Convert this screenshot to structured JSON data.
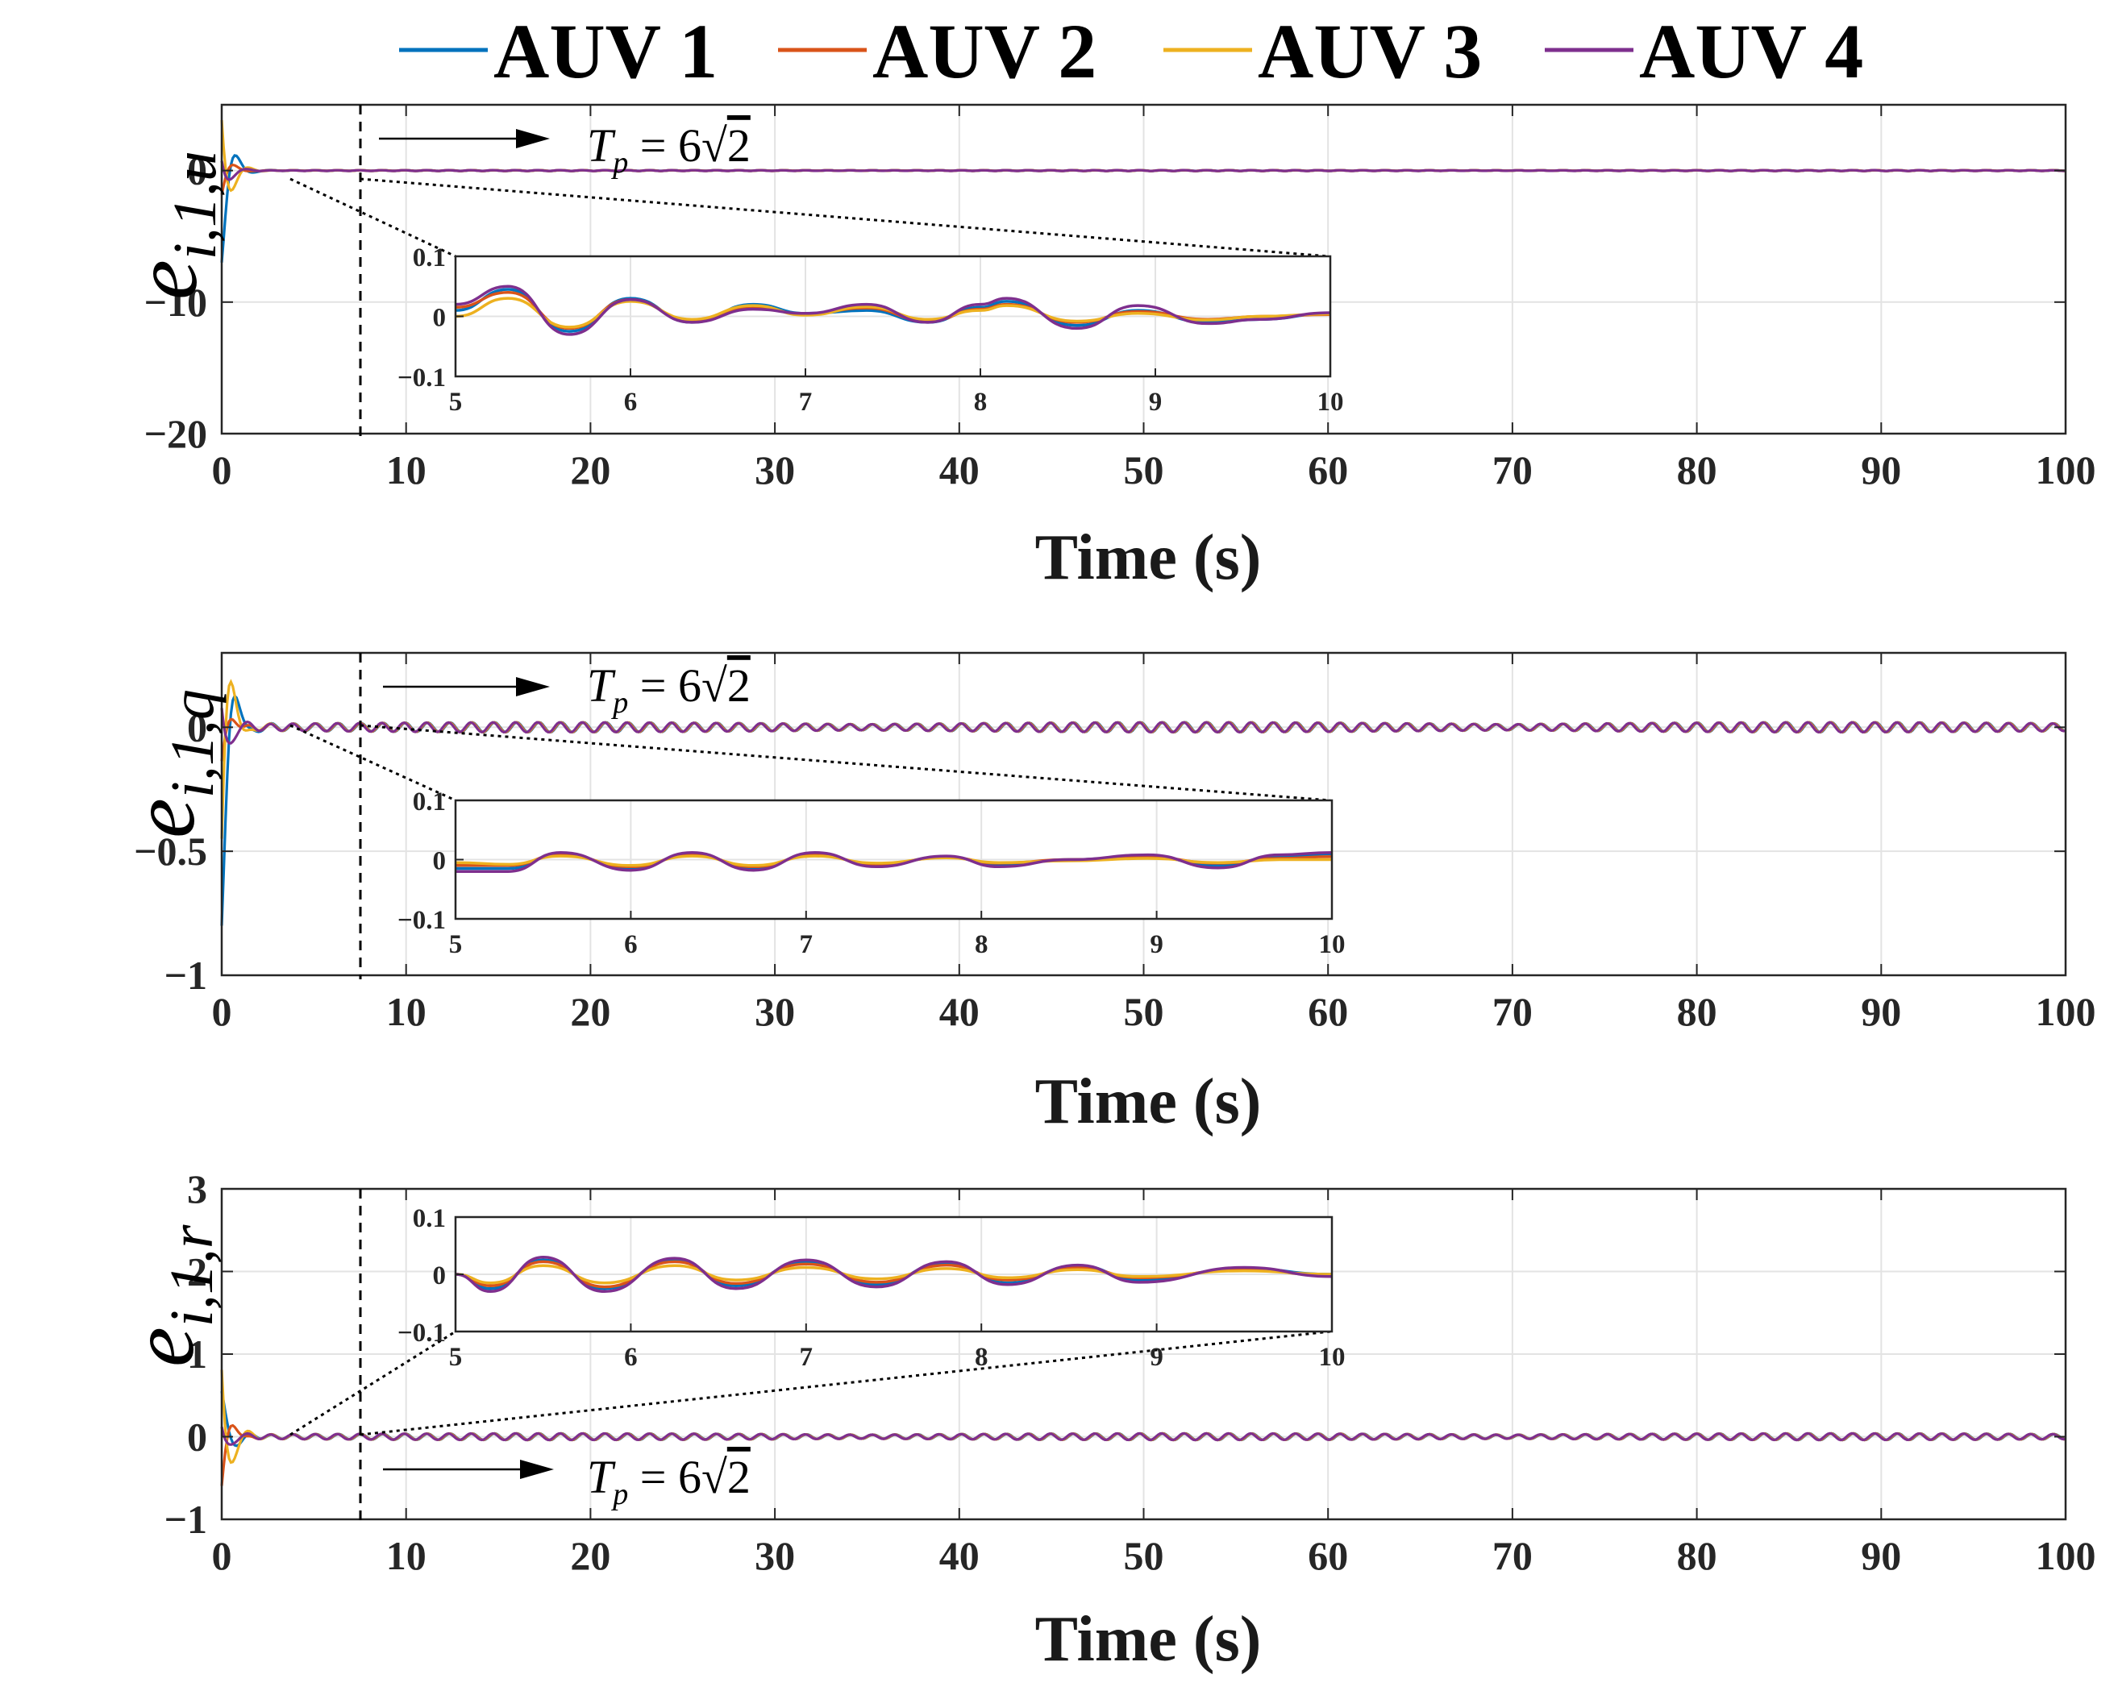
{
  "legend": [
    "AUV 1",
    "AUV 2",
    "AUV 3",
    "AUV 4"
  ],
  "colors": {
    "AUV 1": "#0072BD",
    "AUV 2": "#D95319",
    "AUV 3": "#EDB120",
    "AUV 4": "#7E2F8E"
  },
  "tp_label": "T_p = 6√2",
  "tp_value": 8.485,
  "chart_data": [
    {
      "type": "line",
      "ylabel": "e_{i,1,u}",
      "xlabel": "Time (s)",
      "xlim": [
        0,
        100
      ],
      "ylim": [
        -20,
        5
      ],
      "xticks": [
        0,
        10,
        20,
        30,
        40,
        50,
        60,
        70,
        80,
        90,
        100
      ],
      "yticks": [
        -20,
        -10,
        0
      ],
      "grid": true,
      "transient": {
        "t_end": 3,
        "AUV 1": -7,
        "AUV 2": -2,
        "AUV 3": 5.5,
        "AUV 4": 2
      },
      "steady_amplitude": 0.03,
      "inset": {
        "xlim": [
          5,
          10
        ],
        "ylim": [
          -0.1,
          0.1
        ],
        "xticks": [
          5,
          6,
          7,
          8,
          9,
          10
        ],
        "yticks": [
          -0.1,
          0,
          0.1
        ],
        "x": [
          5,
          5.3,
          5.65,
          6,
          6.35,
          6.7,
          7,
          7.35,
          7.7,
          8,
          8.15,
          8.55,
          8.9,
          9.3,
          9.6,
          10
        ],
        "series": [
          {
            "name": "AUV 1",
            "values": [
              0.01,
              0.045,
              -0.025,
              0.03,
              -0.01,
              0.02,
              0.005,
              0.01,
              -0.01,
              0.015,
              0.025,
              -0.015,
              0.01,
              -0.01,
              -0.005,
              0.005
            ]
          },
          {
            "name": "AUV 2",
            "values": [
              0.015,
              0.04,
              -0.02,
              0.028,
              -0.008,
              0.015,
              0.004,
              0.014,
              -0.008,
              0.012,
              0.02,
              -0.01,
              0.008,
              -0.005,
              0.0,
              0.003
            ]
          },
          {
            "name": "AUV 3",
            "values": [
              0.0,
              0.03,
              -0.018,
              0.025,
              -0.005,
              0.018,
              0.002,
              0.016,
              -0.005,
              0.01,
              0.018,
              -0.008,
              0.005,
              -0.006,
              0.0,
              0.004
            ]
          },
          {
            "name": "AUV 4",
            "values": [
              0.02,
              0.05,
              -0.03,
              0.028,
              -0.01,
              0.012,
              0.005,
              0.02,
              -0.01,
              0.02,
              0.03,
              -0.02,
              0.018,
              -0.012,
              -0.005,
              0.006
            ]
          }
        ]
      }
    },
    {
      "type": "line",
      "ylabel": "e_{i,1,q}",
      "xlabel": "Time (s)",
      "xlim": [
        0,
        100
      ],
      "ylim": [
        -1,
        0.3
      ],
      "xticks": [
        0,
        10,
        20,
        30,
        40,
        50,
        60,
        70,
        80,
        90,
        100
      ],
      "yticks": [
        -1,
        -0.5,
        0
      ],
      "grid": true,
      "transient": {
        "t_end": 3,
        "AUV 1": -0.8,
        "AUV 2": -0.15,
        "AUV 3": -0.65,
        "AUV 4": 0.2
      },
      "steady_amplitude": 0.02,
      "inset": {
        "xlim": [
          5,
          10
        ],
        "ylim": [
          -0.1,
          0.1
        ],
        "xticks": [
          5,
          6,
          7,
          8,
          9,
          10
        ],
        "yticks": [
          -0.1,
          0,
          0.1
        ],
        "x": [
          5,
          5.3,
          5.6,
          6,
          6.35,
          6.7,
          7.05,
          7.4,
          7.8,
          8.1,
          8.5,
          8.95,
          9.35,
          9.7,
          10
        ],
        "series": [
          {
            "name": "AUV 1",
            "values": [
              -0.015,
              -0.015,
              0.01,
              -0.015,
              0.01,
              -0.015,
              0.01,
              -0.01,
              0.005,
              -0.01,
              0.0,
              0.005,
              -0.01,
              0.005,
              0.01
            ]
          },
          {
            "name": "AUV 2",
            "values": [
              -0.01,
              -0.01,
              0.008,
              -0.012,
              0.008,
              -0.012,
              0.008,
              -0.008,
              0.004,
              -0.006,
              0.0,
              0.004,
              -0.006,
              0.002,
              0.005
            ]
          },
          {
            "name": "AUV 3",
            "values": [
              -0.005,
              -0.008,
              0.006,
              -0.01,
              0.006,
              -0.01,
              0.006,
              -0.006,
              0.003,
              -0.005,
              -0.002,
              0.002,
              -0.005,
              0.0,
              0.0
            ]
          },
          {
            "name": "AUV 4",
            "values": [
              -0.02,
              -0.02,
              0.012,
              -0.018,
              0.012,
              -0.018,
              0.012,
              -0.012,
              0.006,
              -0.012,
              0.0,
              0.008,
              -0.014,
              0.008,
              0.012
            ]
          }
        ]
      }
    },
    {
      "type": "line",
      "ylabel": "e_{i,1,r}",
      "xlabel": "Time (s)",
      "xlim": [
        0,
        100
      ],
      "ylim": [
        -1,
        3
      ],
      "xticks": [
        0,
        10,
        20,
        30,
        40,
        50,
        60,
        70,
        80,
        90,
        100
      ],
      "yticks": [
        -1,
        0,
        1,
        2,
        3
      ],
      "grid": true,
      "transient": {
        "t_end": 3,
        "AUV 1": 0.55,
        "AUV 2": -0.65,
        "AUV 3": 1.15,
        "AUV 4": 0.3
      },
      "steady_amplitude": 0.04,
      "inset": {
        "xlim": [
          5,
          10
        ],
        "ylim": [
          -0.1,
          0.1
        ],
        "xticks": [
          5,
          6,
          7,
          8,
          9,
          10
        ],
        "yticks": [
          -0.1,
          0,
          0.1
        ],
        "x": [
          5,
          5.2,
          5.5,
          5.85,
          6.25,
          6.6,
          7.0,
          7.4,
          7.8,
          8.15,
          8.55,
          8.9,
          9.5,
          10
        ],
        "series": [
          {
            "name": "AUV 1",
            "values": [
              0.0,
              -0.025,
              0.025,
              -0.025,
              0.025,
              -0.02,
              0.022,
              -0.018,
              0.02,
              -0.015,
              0.015,
              -0.01,
              0.01,
              0.0
            ]
          },
          {
            "name": "AUV 2",
            "values": [
              0.0,
              -0.02,
              0.022,
              -0.022,
              0.022,
              -0.016,
              0.018,
              -0.014,
              0.016,
              -0.01,
              0.012,
              -0.006,
              0.008,
              -0.002
            ]
          },
          {
            "name": "AUV 3",
            "values": [
              0.0,
              -0.015,
              0.015,
              -0.015,
              0.015,
              -0.01,
              0.012,
              -0.008,
              0.01,
              -0.006,
              0.008,
              -0.004,
              0.006,
              0.0
            ]
          },
          {
            "name": "AUV 4",
            "values": [
              0.0,
              -0.03,
              0.03,
              -0.03,
              0.028,
              -0.025,
              0.025,
              -0.022,
              0.022,
              -0.018,
              0.016,
              -0.014,
              0.012,
              -0.004
            ]
          }
        ]
      }
    }
  ]
}
